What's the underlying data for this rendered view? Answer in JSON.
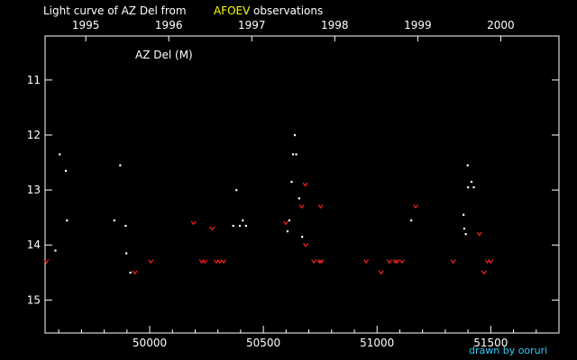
{
  "chart_data": {
    "type": "scatter",
    "title_prefix": "Light curve of AZ Del from",
    "title_source": "AFOEV",
    "title_suffix": "observations",
    "star_label": "AZ Del (M)",
    "credit": "drawn by ooruri",
    "top_axis": {
      "labels": [
        "1995",
        "1996",
        "1997",
        "1998",
        "1999",
        "2000"
      ],
      "jd_positions": [
        49719,
        50084,
        50449,
        50814,
        51179,
        51544
      ]
    },
    "xlim": [
      49540,
      51800
    ],
    "ylim": [
      15.6,
      10.2
    ],
    "x_ticks": [
      {
        "value": 50000,
        "label": "50000"
      },
      {
        "value": 50500,
        "label": "50500"
      },
      {
        "value": 51000,
        "label": "51000"
      },
      {
        "value": 51500,
        "label": "51500"
      }
    ],
    "y_ticks": [
      {
        "value": 11,
        "label": "11"
      },
      {
        "value": 12,
        "label": "12"
      },
      {
        "value": 13,
        "label": "13"
      },
      {
        "value": 14,
        "label": "14"
      },
      {
        "value": 15,
        "label": "15"
      }
    ],
    "grid": false,
    "series": [
      {
        "kind": "observation",
        "color": "#ffffff",
        "points": [
          [
            49585,
            14.1
          ],
          [
            49604,
            12.35
          ],
          [
            49631,
            12.65
          ],
          [
            49636,
            13.55
          ],
          [
            49844,
            13.55
          ],
          [
            49870,
            12.55
          ],
          [
            49894,
            13.65
          ],
          [
            49897,
            14.15
          ],
          [
            49915,
            14.5
          ],
          [
            50367,
            13.65
          ],
          [
            50381,
            13.0
          ],
          [
            50396,
            13.65
          ],
          [
            50409,
            13.55
          ],
          [
            50423,
            13.65
          ],
          [
            50606,
            13.75
          ],
          [
            50614,
            13.55
          ],
          [
            50624,
            12.85
          ],
          [
            50630,
            12.35
          ],
          [
            50638,
            12.0
          ],
          [
            50644,
            12.35
          ],
          [
            50657,
            13.15
          ],
          [
            50670,
            13.85
          ],
          [
            51150,
            13.55
          ],
          [
            51380,
            13.45
          ],
          [
            51383,
            13.7
          ],
          [
            51390,
            13.8
          ],
          [
            51398,
            12.55
          ],
          [
            51400,
            12.95
          ],
          [
            51415,
            12.85
          ],
          [
            51425,
            12.95
          ]
        ]
      },
      {
        "kind": "fainter-than",
        "color": "#ff2020",
        "points": [
          [
            49545,
            14.3
          ],
          [
            49935,
            14.5
          ],
          [
            50005,
            14.3
          ],
          [
            50193,
            13.6
          ],
          [
            50229,
            14.3
          ],
          [
            50243,
            14.3
          ],
          [
            50275,
            13.7
          ],
          [
            50293,
            14.3
          ],
          [
            50308,
            14.3
          ],
          [
            50325,
            14.3
          ],
          [
            50599,
            13.6
          ],
          [
            50669,
            13.3
          ],
          [
            50684,
            12.9
          ],
          [
            50686,
            14.0
          ],
          [
            50722,
            14.3
          ],
          [
            50747,
            14.3
          ],
          [
            50752,
            13.3
          ],
          [
            50755,
            14.3
          ],
          [
            50952,
            14.3
          ],
          [
            51018,
            14.5
          ],
          [
            51054,
            14.3
          ],
          [
            51080,
            14.3
          ],
          [
            51088,
            14.3
          ],
          [
            51110,
            14.3
          ],
          [
            51170,
            13.3
          ],
          [
            51335,
            14.3
          ],
          [
            51450,
            13.8
          ],
          [
            51470,
            14.5
          ],
          [
            51485,
            14.3
          ],
          [
            51500,
            14.3
          ]
        ]
      }
    ]
  }
}
